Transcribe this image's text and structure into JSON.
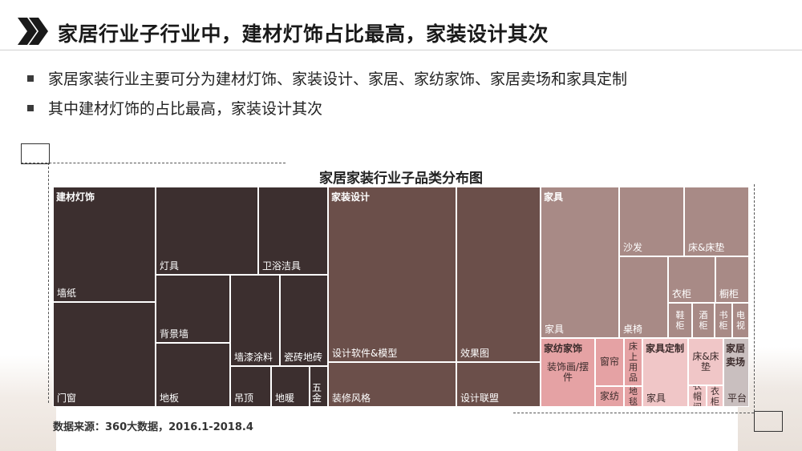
{
  "header": {
    "title": "家居行业子行业中，建材灯饰占比最高，家装设计其次"
  },
  "bullets": [
    "家居家装行业主要可分为建材灯饰、家装设计、家居、家纺家饰、家居卖场和家具定制",
    "其中建材灯饰的占比最高，家装设计其次"
  ],
  "source": "数据来源：360大数据，2016.1-2018.4",
  "colors": {
    "building": "#3c2f2f",
    "design": "#6b4f4a",
    "home": "#a88a86",
    "textile": "#e5a2a4",
    "custom": "#f0c6c7",
    "mall": "#c9bfbf"
  },
  "chart_data": {
    "type": "treemap",
    "title": "家居家装行业子品类分布图",
    "groups": [
      {
        "name": "建材灯饰",
        "children": [
          "墙纸",
          "门窗",
          "灯具",
          "卫浴洁具",
          "背景墙",
          "地板",
          "墙漆涂料",
          "瓷砖地砖",
          "吊顶",
          "地暖",
          "五金"
        ]
      },
      {
        "name": "家装设计",
        "children": [
          "设计软件&模型",
          "效果图",
          "装修风格",
          "设计联盟"
        ]
      },
      {
        "name": "家具",
        "children": [
          "家具",
          "沙发",
          "床&床垫",
          "衣柜",
          "橱柜",
          "鞋柜",
          "酒柜",
          "书柜",
          "电视",
          "桌椅"
        ]
      },
      {
        "name": "家纺家饰",
        "children": [
          "装饰画/摆件",
          "窗帘",
          "家纺",
          "床上用品",
          "地毯"
        ]
      },
      {
        "name": "家具定制",
        "children": [
          "家具",
          "床&床垫",
          "衣帽间",
          "衣柜"
        ]
      },
      {
        "name": "家居卖场",
        "children": [
          "平台"
        ]
      }
    ]
  },
  "cells": {
    "c01": "墙纸",
    "c02": "门窗",
    "c03": "灯具",
    "c04": "卫浴洁具",
    "c05": "背景墙",
    "c06": "地板",
    "c07": "墙漆涂料",
    "c08": "瓷砖地砖",
    "c09": "吊顶",
    "c10": "地暖",
    "c11": "五金",
    "c12": "设计软件&模型",
    "c13": "效果图",
    "c14": "装修风格",
    "c15": "设计联盟",
    "c16": "家具",
    "c17": "沙发",
    "c18": "床&床垫",
    "c19": "衣柜",
    "c20": "橱柜",
    "c21": "鞋柜",
    "c22": "酒柜",
    "c23": "书柜",
    "c24": "电视",
    "c25": "桌椅",
    "c26": "装饰画/摆件",
    "c27": "窗帘",
    "c28": "家纺",
    "c29": "床上用品",
    "c30": "地毯",
    "c31": "家具",
    "c32": "床&床垫",
    "c33": "衣帽间",
    "c34": "衣柜",
    "c35": "平台",
    "g1": "建材灯饰",
    "g2": "家装设计",
    "g3": "家具",
    "g4": "家纺家饰",
    "g5": "家具定制",
    "g6": "家居卖场"
  }
}
